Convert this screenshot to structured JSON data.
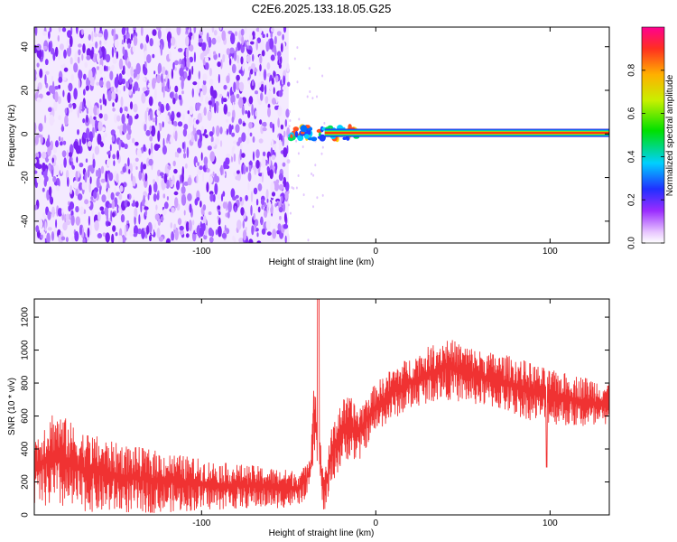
{
  "figure": {
    "title": "C2E6.2025.133.18.05.G25"
  },
  "chart_data": [
    {
      "type": "heatmap",
      "xlabel": "Height of straight line (km)",
      "ylabel": "Frequency (Hz)",
      "xlim": [
        -196,
        134
      ],
      "ylim": [
        -50,
        49
      ],
      "xticks": [
        -100,
        0,
        100
      ],
      "xtick_labels": [
        "-100",
        "0",
        "100"
      ],
      "yticks": [
        -40,
        -20,
        0,
        20,
        40
      ],
      "ytick_labels": [
        "-40",
        "-20",
        "0",
        "20",
        "40"
      ],
      "grid": false,
      "noise_region_x": [
        -196,
        -50
      ],
      "signal_line": {
        "frequency": 0.5,
        "x_start": -50,
        "x_end": 134
      },
      "colorbar": {
        "label": "Normalized spectral amplitude",
        "range": [
          0,
          1
        ],
        "ticks": [
          0.0,
          0.2,
          0.4,
          0.6,
          0.8
        ],
        "tick_labels": [
          "0.0",
          "0.2",
          "0.4",
          "0.6",
          "0.8"
        ],
        "colormap": "rainbow"
      }
    },
    {
      "type": "line",
      "xlabel": "Height of straight line (km)",
      "ylabel": "SNR (10 * v/v)",
      "xlim": [
        -196,
        134
      ],
      "ylim": [
        0,
        1310
      ],
      "xticks": [
        -100,
        0,
        100
      ],
      "xtick_labels": [
        "-100",
        "0",
        "100"
      ],
      "yticks": [
        0,
        200,
        400,
        600,
        800,
        1000,
        1200
      ],
      "ytick_labels": [
        "0",
        "200",
        "400",
        "600",
        "800",
        "1000",
        "1200"
      ],
      "grid": false,
      "color": "#f03232",
      "envelope": {
        "x": [
          -196,
          -185,
          -170,
          -150,
          -130,
          -110,
          -90,
          -70,
          -55,
          -45,
          -40,
          -37,
          -36,
          -34,
          -32,
          -31,
          -30,
          -28,
          -25,
          -20,
          -15,
          -10,
          -5,
          0,
          10,
          20,
          30,
          40,
          50,
          60,
          70,
          80,
          90,
          100,
          110,
          120,
          134
        ],
        "upper": [
          480,
          650,
          520,
          440,
          400,
          360,
          320,
          300,
          280,
          270,
          300,
          450,
          900,
          700,
          450,
          400,
          280,
          350,
          550,
          700,
          720,
          660,
          730,
          800,
          900,
          960,
          1020,
          1080,
          1040,
          1000,
          980,
          960,
          920,
          880,
          860,
          840,
          820
        ],
        "lower": [
          60,
          30,
          20,
          10,
          10,
          20,
          30,
          40,
          40,
          50,
          100,
          150,
          300,
          350,
          200,
          60,
          10,
          50,
          200,
          280,
          350,
          300,
          420,
          500,
          580,
          640,
          680,
          700,
          680,
          660,
          640,
          600,
          570,
          550,
          540,
          520,
          500
        ]
      },
      "peak": {
        "x": -33,
        "y": 1310
      },
      "notch": {
        "x": 98,
        "y": 290
      }
    }
  ]
}
